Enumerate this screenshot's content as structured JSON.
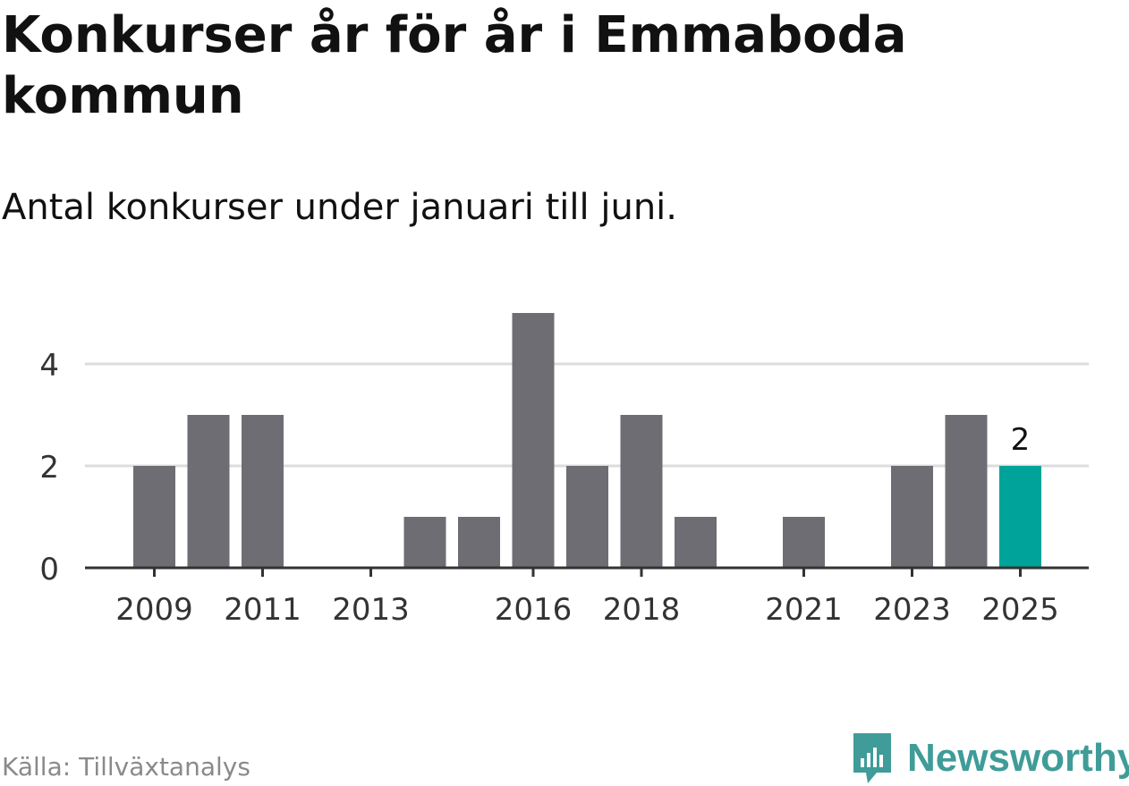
{
  "title": "Konkurser år för år i Emmaboda kommun",
  "subtitle": "Antal konkurser under januari till juni.",
  "source": "Källa: Tillväxtanalys",
  "brand": {
    "name": "Newsworthy",
    "color": "#3f9c98"
  },
  "colors": {
    "bar": "#6e6d73",
    "highlight": "#00a39a",
    "grid": "#dcdcdc",
    "axis": "#333333"
  },
  "chart_data": {
    "type": "bar",
    "title": "Konkurser år för år i Emmaboda kommun",
    "subtitle": "Antal konkurser under januari till juni.",
    "xlabel": "",
    "ylabel": "",
    "categories": [
      "2009",
      "2010",
      "2011",
      "2012",
      "2013",
      "2014",
      "2015",
      "2016",
      "2017",
      "2018",
      "2019",
      "2020",
      "2021",
      "2022",
      "2023",
      "2024",
      "2025"
    ],
    "values": [
      2,
      3,
      3,
      0,
      0,
      1,
      1,
      5,
      2,
      3,
      1,
      0,
      1,
      0,
      2,
      3,
      2
    ],
    "x_tick_labels": [
      "2009",
      "2011",
      "2013",
      "2016",
      "2018",
      "2021",
      "2023",
      "2025"
    ],
    "y_ticks": [
      0,
      2,
      4
    ],
    "ylim": [
      0,
      5.5
    ],
    "grid": true,
    "highlight": {
      "category": "2025",
      "label": "2"
    }
  }
}
